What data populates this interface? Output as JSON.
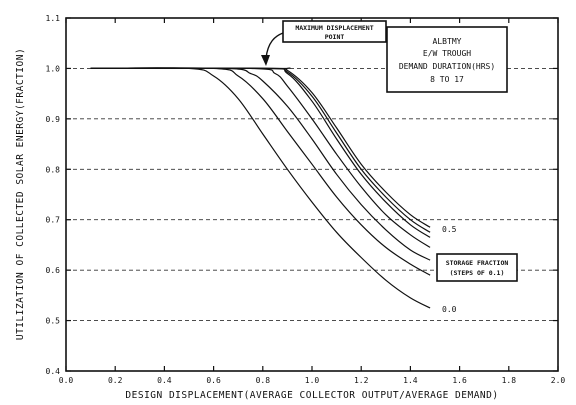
{
  "chart_data": {
    "type": "line",
    "title": "",
    "xlabel": "DESIGN DISPLACEMENT(AVERAGE COLLECTOR OUTPUT/AVERAGE DEMAND)",
    "ylabel": "UTILIZATION OF COLLECTED SOLAR ENERGY(FRACTION)",
    "xlim": [
      0.0,
      2.0
    ],
    "ylim": [
      0.4,
      1.1
    ],
    "xticks": [
      "0.0",
      "0.2",
      "0.4",
      "0.6",
      "0.8",
      "1.0",
      "1.2",
      "1.4",
      "1.6",
      "1.8",
      "2.0"
    ],
    "yticks": [
      "0.4",
      "0.5",
      "0.6",
      "0.7",
      "0.8",
      "0.9",
      "1.0",
      "1.1"
    ],
    "grid": "horizontal-dashed",
    "info_box": [
      "ALBTMY",
      "E/W TROUGH",
      "DEMAND DURATION(HRS)",
      "8 TO 17"
    ],
    "annotation_max": [
      "MAXIMUM DISPLACEMENT",
      "POINT"
    ],
    "annotation_storage": [
      "STORAGE FRACTION",
      "(STEPS OF 0.1)"
    ],
    "curve_labels": [
      "0.5",
      "0.0"
    ],
    "series": [
      {
        "x": [
          0.1,
          0.5,
          0.6,
          0.7,
          0.8,
          0.9,
          1.0,
          1.1,
          1.2,
          1.3,
          1.4,
          1.48
        ],
        "y": [
          1.0,
          1.0,
          0.985,
          0.94,
          0.87,
          0.8,
          0.735,
          0.675,
          0.625,
          0.58,
          0.545,
          0.525
        ]
      },
      {
        "x": [
          0.1,
          0.6,
          0.7,
          0.8,
          0.9,
          1.0,
          1.1,
          1.2,
          1.3,
          1.4,
          1.48
        ],
        "y": [
          1.0,
          1.0,
          0.985,
          0.94,
          0.875,
          0.81,
          0.745,
          0.69,
          0.645,
          0.612,
          0.59
        ]
      },
      {
        "x": [
          0.1,
          0.65,
          0.75,
          0.8,
          0.9,
          1.0,
          1.1,
          1.2,
          1.3,
          1.4,
          1.48
        ],
        "y": [
          1.0,
          1.0,
          0.99,
          0.975,
          0.925,
          0.86,
          0.79,
          0.73,
          0.68,
          0.64,
          0.62
        ]
      },
      {
        "x": [
          0.1,
          0.75,
          0.85,
          0.9,
          1.0,
          1.1,
          1.2,
          1.3,
          1.4,
          1.48
        ],
        "y": [
          1.0,
          1.0,
          0.99,
          0.965,
          0.9,
          0.83,
          0.765,
          0.71,
          0.67,
          0.645
        ]
      },
      {
        "x": [
          0.1,
          0.8,
          0.9,
          1.0,
          1.1,
          1.2,
          1.3,
          1.4,
          1.48
        ],
        "y": [
          1.0,
          1.0,
          0.99,
          0.935,
          0.86,
          0.79,
          0.735,
          0.69,
          0.665
        ]
      },
      {
        "x": [
          0.1,
          0.82,
          0.9,
          1.0,
          1.1,
          1.2,
          1.3,
          1.4,
          1.48
        ],
        "y": [
          1.0,
          1.0,
          0.993,
          0.945,
          0.872,
          0.8,
          0.745,
          0.7,
          0.675
        ]
      },
      {
        "x": [
          0.1,
          0.84,
          0.9,
          1.0,
          1.1,
          1.2,
          1.3,
          1.4,
          1.48
        ],
        "y": [
          1.0,
          1.0,
          0.996,
          0.952,
          0.882,
          0.81,
          0.755,
          0.71,
          0.685
        ]
      }
    ]
  }
}
